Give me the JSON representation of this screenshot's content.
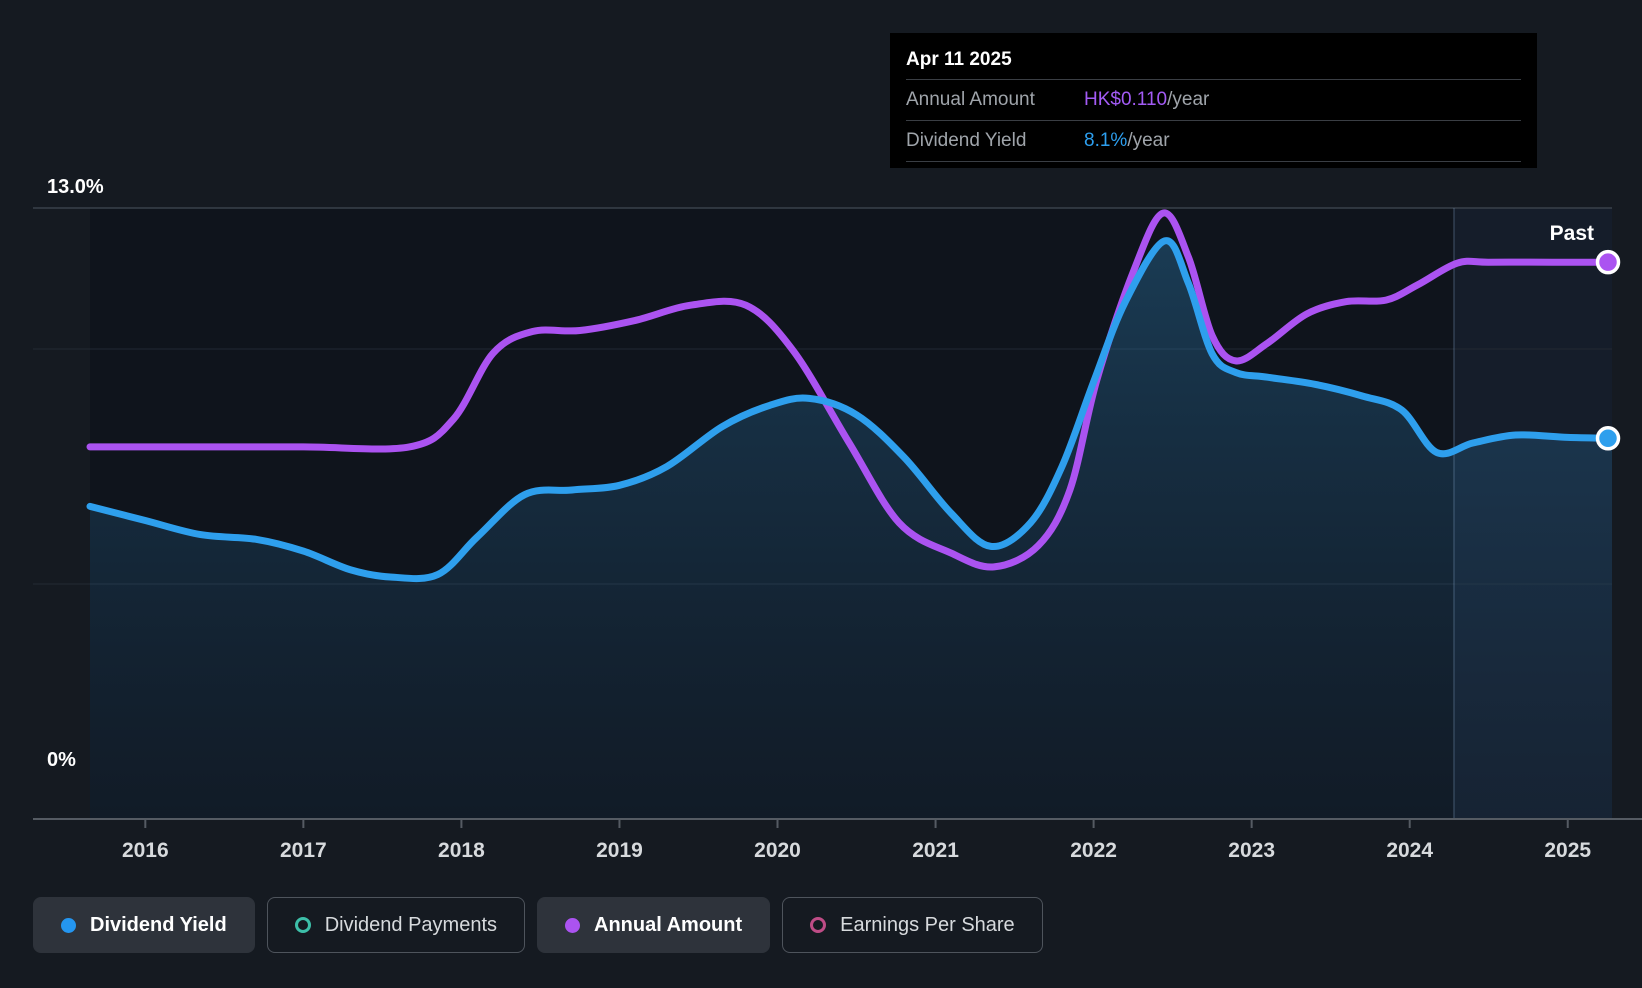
{
  "tooltip": {
    "date": "Apr 11 2025",
    "rows": [
      {
        "label": "Annual Amount",
        "value": "HK$0.110",
        "unit": "/year",
        "value_color": "#A35BF5"
      },
      {
        "label": "Dividend Yield",
        "value": "8.1%",
        "unit": "/year",
        "value_color": "#2D9FEF"
      }
    ]
  },
  "chart": {
    "y_axis": {
      "top_label": "13.0%",
      "bottom_label": "0%"
    },
    "past_label": "Past"
  },
  "chart_data": {
    "type": "line",
    "title": "Dividend history: yield and annual amount over time",
    "x_ticks": [
      "2016",
      "2017",
      "2018",
      "2019",
      "2020",
      "2021",
      "2022",
      "2023",
      "2024",
      "2025"
    ],
    "x_tick_years": [
      2016,
      2017,
      2018,
      2019,
      2020,
      2021,
      2022,
      2023,
      2024,
      2025
    ],
    "x_range": [
      2015.65,
      2025.28
    ],
    "yield_axis": {
      "min": 0,
      "max": 13,
      "unit": "%",
      "gridlines_pct": [
        13,
        10,
        5
      ]
    },
    "amount_axis": {
      "min": 0,
      "max": 0.1207,
      "unit": "HK$"
    },
    "past_region_start_year": 2024.28,
    "legend_position": "bottom",
    "series": [
      {
        "name": "Dividend Yield",
        "unit": "%",
        "axis": "yield",
        "color": "#2E9FED",
        "area_fill": true,
        "points": [
          [
            2015.65,
            6.65
          ],
          [
            2016.0,
            6.35
          ],
          [
            2016.35,
            6.05
          ],
          [
            2016.7,
            5.95
          ],
          [
            2017.0,
            5.7
          ],
          [
            2017.3,
            5.3
          ],
          [
            2017.55,
            5.15
          ],
          [
            2017.85,
            5.2
          ],
          [
            2018.1,
            6.0
          ],
          [
            2018.4,
            6.9
          ],
          [
            2018.7,
            7.0
          ],
          [
            2019.0,
            7.1
          ],
          [
            2019.3,
            7.5
          ],
          [
            2019.65,
            8.35
          ],
          [
            2019.95,
            8.8
          ],
          [
            2020.2,
            8.95
          ],
          [
            2020.5,
            8.6
          ],
          [
            2020.8,
            7.7
          ],
          [
            2021.1,
            6.5
          ],
          [
            2021.35,
            5.8
          ],
          [
            2021.6,
            6.3
          ],
          [
            2021.8,
            7.5
          ],
          [
            2022.0,
            9.3
          ],
          [
            2022.2,
            11.0
          ],
          [
            2022.45,
            12.3
          ],
          [
            2022.6,
            11.4
          ],
          [
            2022.75,
            9.9
          ],
          [
            2022.9,
            9.5
          ],
          [
            2023.1,
            9.4
          ],
          [
            2023.4,
            9.25
          ],
          [
            2023.7,
            9.0
          ],
          [
            2023.95,
            8.7
          ],
          [
            2024.17,
            7.8
          ],
          [
            2024.4,
            8.0
          ],
          [
            2024.67,
            8.17
          ],
          [
            2025.0,
            8.12
          ],
          [
            2025.28,
            8.1
          ]
        ],
        "end_value_label": "8.1%/year"
      },
      {
        "name": "Annual Amount",
        "unit": "HK$/year",
        "axis": "amount",
        "color": "#AB53F1",
        "area_fill": false,
        "points": [
          [
            2015.65,
            0.0735
          ],
          [
            2016.3,
            0.0735
          ],
          [
            2017.0,
            0.0735
          ],
          [
            2017.67,
            0.0735
          ],
          [
            2017.95,
            0.079
          ],
          [
            2018.2,
            0.092
          ],
          [
            2018.45,
            0.0963
          ],
          [
            2018.75,
            0.0965
          ],
          [
            2019.1,
            0.0985
          ],
          [
            2019.45,
            0.1015
          ],
          [
            2019.8,
            0.1015
          ],
          [
            2020.1,
            0.0925
          ],
          [
            2020.45,
            0.0745
          ],
          [
            2020.77,
            0.0585
          ],
          [
            2021.1,
            0.0525
          ],
          [
            2021.37,
            0.0498
          ],
          [
            2021.65,
            0.054
          ],
          [
            2021.85,
            0.065
          ],
          [
            2022.02,
            0.0867
          ],
          [
            2022.25,
            0.108
          ],
          [
            2022.44,
            0.1197
          ],
          [
            2022.6,
            0.111
          ],
          [
            2022.75,
            0.0955
          ],
          [
            2022.9,
            0.0905
          ],
          [
            2023.1,
            0.094
          ],
          [
            2023.35,
            0.0998
          ],
          [
            2023.6,
            0.1022
          ],
          [
            2023.85,
            0.1025
          ],
          [
            2024.05,
            0.1055
          ],
          [
            2024.3,
            0.1098
          ],
          [
            2024.5,
            0.11
          ],
          [
            2024.9,
            0.11
          ],
          [
            2025.28,
            0.11
          ]
        ],
        "end_value_label": "HK$0.110/year"
      }
    ]
  },
  "legend": {
    "items": [
      {
        "label": "Dividend Yield",
        "color": "#2496F0",
        "active": true,
        "marker": "filled"
      },
      {
        "label": "Dividend Payments",
        "color": "#3DBFA9",
        "active": false,
        "marker": "ring"
      },
      {
        "label": "Annual Amount",
        "color": "#AB53F1",
        "active": true,
        "marker": "filled"
      },
      {
        "label": "Earnings Per Share",
        "color": "#BE4C86",
        "active": false,
        "marker": "ring"
      }
    ]
  },
  "colors": {
    "page_background": "#151A21",
    "plot_background": "#0F141C",
    "tooltip_background": "#000000",
    "grid_major": "#39414B",
    "grid_minor": "#222933",
    "axis_line": "#555B63",
    "past_region_fill": "rgba(76,120,168,0.10)",
    "past_divider": "rgba(135,170,205,0.28)",
    "dividend_yield_line": "#2E9FED",
    "annual_amount_line": "#AB53F1"
  }
}
